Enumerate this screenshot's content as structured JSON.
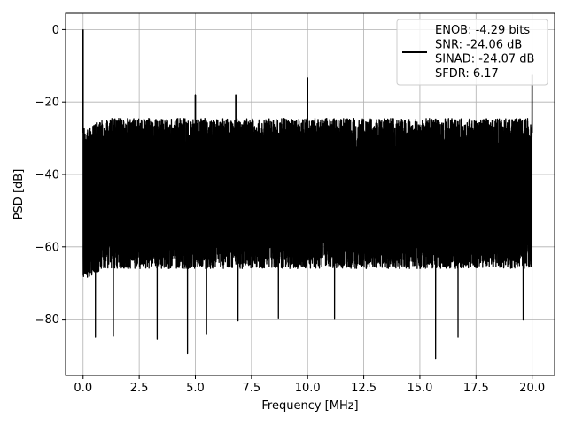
{
  "chart_data": {
    "type": "line",
    "title": "",
    "xlabel": "Frequency [MHz]",
    "ylabel": "PSD [dB]",
    "xlim": [
      -0.78,
      21.0
    ],
    "ylim": [
      -95.5,
      4.5
    ],
    "x_ticks": [
      0.0,
      2.5,
      5.0,
      7.5,
      10.0,
      12.5,
      15.0,
      17.5,
      20.0
    ],
    "x_tick_labels": [
      "0.0",
      "2.5",
      "5.0",
      "7.5",
      "10.0",
      "12.5",
      "15.0",
      "17.5",
      "20.0"
    ],
    "y_ticks": [
      0,
      -20,
      -40,
      -60,
      -80
    ],
    "y_tick_labels": [
      "0",
      "−20",
      "−40",
      "−60",
      "−80"
    ],
    "grid": true,
    "legend_position": "top-right",
    "series": [
      {
        "legend_lines": [
          "ENOB: -4.29 bits",
          "SNR: -24.06 dB",
          "SINAD: -24.07 dB",
          "SFDR: 6.17"
        ],
        "color": "#000000",
        "x_range": [
          0.0,
          20.0
        ],
        "noise_floor_top_db": -24.5,
        "noise_floor_bottom_db": -66.0,
        "deep_dips": [
          {
            "x": 0.55,
            "y": -85.0
          },
          {
            "x": 1.35,
            "y": -84.7
          },
          {
            "x": 3.3,
            "y": -85.5
          },
          {
            "x": 4.65,
            "y": -89.5
          },
          {
            "x": 5.5,
            "y": -84.0
          },
          {
            "x": 6.9,
            "y": -80.5
          },
          {
            "x": 8.7,
            "y": -79.7
          },
          {
            "x": 11.2,
            "y": -79.8
          },
          {
            "x": 15.7,
            "y": -91.0
          },
          {
            "x": 16.7,
            "y": -85.0
          },
          {
            "x": 19.6,
            "y": -80.0
          }
        ],
        "peaks": [
          {
            "x": 0.0,
            "y": 0.0
          },
          {
            "x": 5.0,
            "y": -18.0
          },
          {
            "x": 6.8,
            "y": -18.0
          },
          {
            "x": 10.0,
            "y": -13.3
          },
          {
            "x": 20.0,
            "y": -12.5
          }
        ]
      }
    ]
  }
}
